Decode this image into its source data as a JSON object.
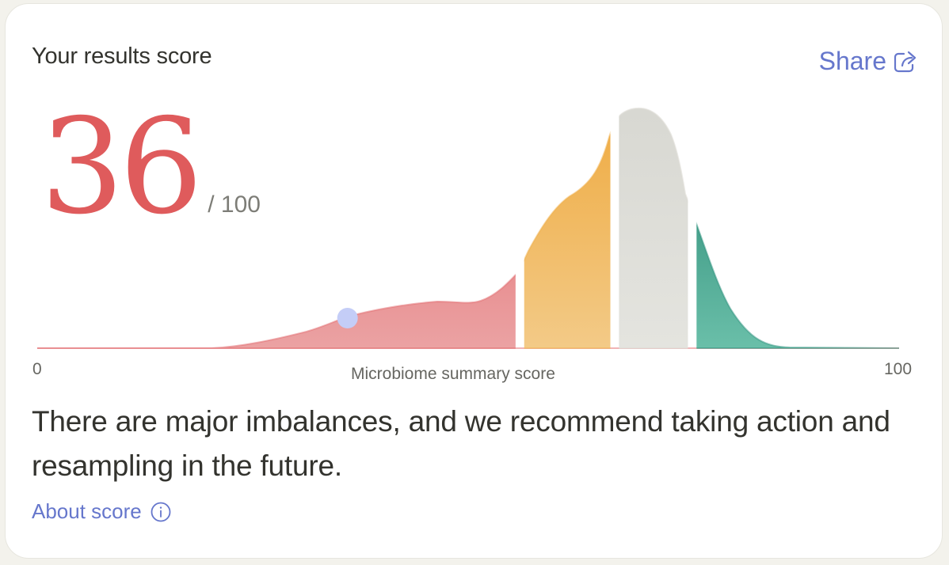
{
  "card": {
    "title": "Your results score",
    "share_label": "Share",
    "share_icon": "share-icon",
    "score": "36",
    "score_max": "/ 100",
    "message": "There are major imbalances, and we recommend taking action and resampling in the future.",
    "about_label": "About score",
    "about_icon": "info-icon"
  },
  "chart_data": {
    "type": "area",
    "xlabel": "Microbiome summary score",
    "x_tick_min": "0",
    "x_tick_max": "100",
    "xlim": [
      0,
      100
    ],
    "marker_value": 36,
    "colors": {
      "red": "#e2696d",
      "orange": "#efb04c",
      "gray": "#dddcd6",
      "green": "#2a8f7c",
      "marker": "#c4cdf7"
    },
    "segments": [
      {
        "range": [
          0,
          55.5
        ],
        "color": "red"
      },
      {
        "range": [
          56.5,
          66.5
        ],
        "color": "orange"
      },
      {
        "range": [
          67.5,
          75.5
        ],
        "color": "gray"
      },
      {
        "range": [
          76.5,
          100
        ],
        "color": "green"
      }
    ]
  }
}
